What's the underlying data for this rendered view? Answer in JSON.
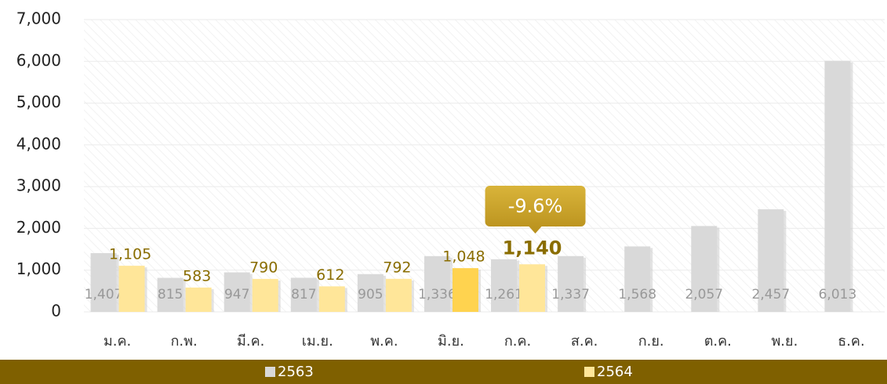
{
  "chart_data": {
    "type": "bar",
    "categories": [
      "ม.ค.",
      "ก.พ.",
      "มี.ค.",
      "เม.ย.",
      "พ.ค.",
      "มิ.ย.",
      "ก.ค.",
      "ส.ค.",
      "ก.ย.",
      "ต.ค.",
      "พ.ย.",
      "ธ.ค."
    ],
    "series": [
      {
        "name": "2563",
        "color": "#d9d9d9",
        "values": [
          1407,
          815,
          947,
          817,
          905,
          1336,
          1261,
          1337,
          1568,
          2057,
          2457,
          6013
        ],
        "value_labels": [
          "1,407",
          "815",
          "947",
          "817",
          "905",
          "1,336",
          "1,261",
          "1,337",
          "1,568",
          "2,057",
          "2,457",
          "6,013"
        ]
      },
      {
        "name": "2564",
        "color": "#ffe699",
        "colors": [
          "#ffe699",
          "#ffe699",
          "#ffe699",
          "#ffe699",
          "#ffe699",
          "#ffd34f",
          "#ffe699",
          null,
          null,
          null,
          null,
          null
        ],
        "values": [
          1105,
          583,
          790,
          612,
          792,
          1048,
          1140,
          null,
          null,
          null,
          null,
          null
        ],
        "value_labels": [
          "1,105",
          "583",
          "790",
          "612",
          "792",
          "1,048",
          "1,140",
          null,
          null,
          null,
          null,
          null
        ]
      }
    ],
    "annotation": "-9.6%",
    "ylim": [
      0,
      7000
    ],
    "yticks": [
      0,
      {
        "value": 1000,
        "label": "1,000"
      },
      {
        "value": 2000,
        "label": "2,000"
      },
      {
        "value": 3000,
        "label": "3,000"
      },
      {
        "value": 4000,
        "label": "4,000"
      },
      {
        "value": 5000,
        "label": "5,000"
      },
      {
        "value": 6000,
        "label": "6,000"
      },
      {
        "value": 7000,
        "label": "7,000"
      }
    ],
    "grid": true
  }
}
